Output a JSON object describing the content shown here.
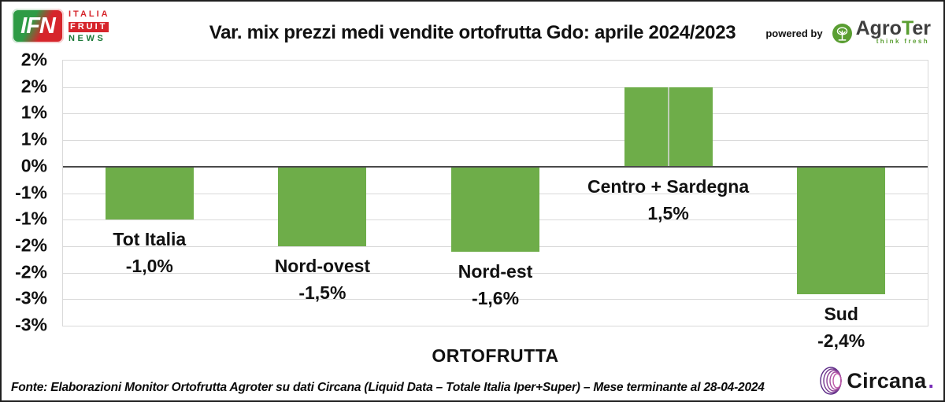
{
  "header": {
    "ifn_logo": {
      "acronym": "IFN",
      "word1": "ITALIA",
      "word2": "FRUIT",
      "word3": "NEWS"
    },
    "powered_by_label": "powered by",
    "agroter_logo": {
      "name_part1": "Agro",
      "name_accent": "T",
      "name_part2": "er",
      "tagline": "think fresh"
    }
  },
  "chart_data": {
    "type": "bar",
    "title": "Var. mix prezzi medi vendite ortofrutta Gdo: aprile 2024/2023",
    "categories": [
      "Tot Italia",
      "Nord-ovest",
      "Nord-est",
      "Centro + Sardegna",
      "Sud"
    ],
    "values": [
      -1.0,
      -1.5,
      -1.6,
      1.5,
      -2.4
    ],
    "value_labels": [
      "-1,0%",
      "-1,5%",
      "-1,6%",
      "1,5%",
      "-2,4%"
    ],
    "xlabel": "ORTOFRUTTA",
    "ylabel": "",
    "ylim": [
      -3.0,
      2.0
    ],
    "ytick_step": 0.5,
    "ytick_labels": [
      "2%",
      "2%",
      "1%",
      "1%",
      "0%",
      "-1%",
      "-1%",
      "-2%",
      "-2%",
      "-3%",
      "-3%"
    ],
    "grid": true,
    "legend": false,
    "bar_color": "#6ead49",
    "seam_bar_index": 3
  },
  "footer": {
    "source_text": "Fonte: Elaborazioni Monitor Ortofrutta Agroter su dati Circana (Liquid Data – Totale Italia Iper+Super) – Mese terminante al 28-04-2024",
    "circana_logo": {
      "wordmark": "Circana",
      "dot": "."
    }
  },
  "colors": {
    "bar_green": "#6ead49",
    "gridline": "#d9d9d9",
    "zero_axis": "#4a4a4a",
    "ifn_red": "#d6252b",
    "ifn_green": "#2e9b45",
    "agroter_green": "#5a9e32",
    "circana_purple": "#5b2a86",
    "circana_magenta": "#be59a8"
  }
}
